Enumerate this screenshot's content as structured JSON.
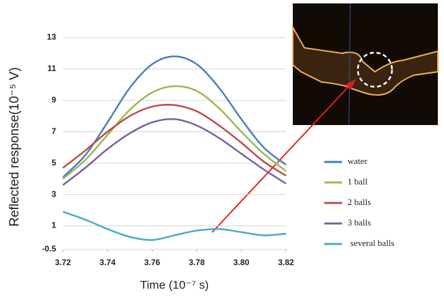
{
  "chart_data": {
    "type": "line",
    "xlabel": "Time (10⁻⁷ s)",
    "ylabel": "Reflected response(10⁻⁵ V)",
    "x": [
      3.72,
      3.73,
      3.74,
      3.75,
      3.76,
      3.77,
      3.78,
      3.79,
      3.8,
      3.81,
      3.82
    ],
    "series": [
      {
        "name": "water",
        "color": "#4a7ebb",
        "values": [
          4.1,
          5.5,
          7.6,
          9.8,
          11.3,
          11.8,
          11.3,
          9.8,
          7.8,
          6.0,
          4.9
        ]
      },
      {
        "name": "1 ball",
        "color": "#98b954",
        "values": [
          4.0,
          5.2,
          6.8,
          8.4,
          9.5,
          9.9,
          9.6,
          8.5,
          7.0,
          5.6,
          4.5
        ]
      },
      {
        "name": "2 balls",
        "color": "#be4b48",
        "values": [
          4.7,
          5.8,
          7.0,
          8.0,
          8.6,
          8.7,
          8.3,
          7.4,
          6.3,
          5.1,
          4.2
        ]
      },
      {
        "name": "3 balls",
        "color": "#7d60a0",
        "values": [
          3.6,
          4.7,
          5.9,
          6.9,
          7.6,
          7.8,
          7.4,
          6.6,
          5.6,
          4.6,
          3.7
        ]
      },
      {
        "name": "several balls",
        "color": "#46aac5",
        "values": [
          1.9,
          1.4,
          0.8,
          0.3,
          0.1,
          0.4,
          0.7,
          0.8,
          0.6,
          0.4,
          0.5
        ]
      }
    ],
    "xlim": [
      3.72,
      3.82
    ],
    "xticks": [
      {
        "value": 3.72,
        "label": "3.72"
      },
      {
        "value": 3.74,
        "label": "3.74"
      },
      {
        "value": 3.76,
        "label": "3.76"
      },
      {
        "value": 3.78,
        "label": "3.78"
      },
      {
        "value": 3.8,
        "label": "3.80"
      },
      {
        "value": 3.82,
        "label": "3.82"
      }
    ],
    "ylim": [
      -0.5,
      13
    ],
    "yticks": [
      -0.5,
      1,
      3,
      5,
      7,
      9,
      11,
      13
    ],
    "grid": true,
    "legend": "right"
  }
}
